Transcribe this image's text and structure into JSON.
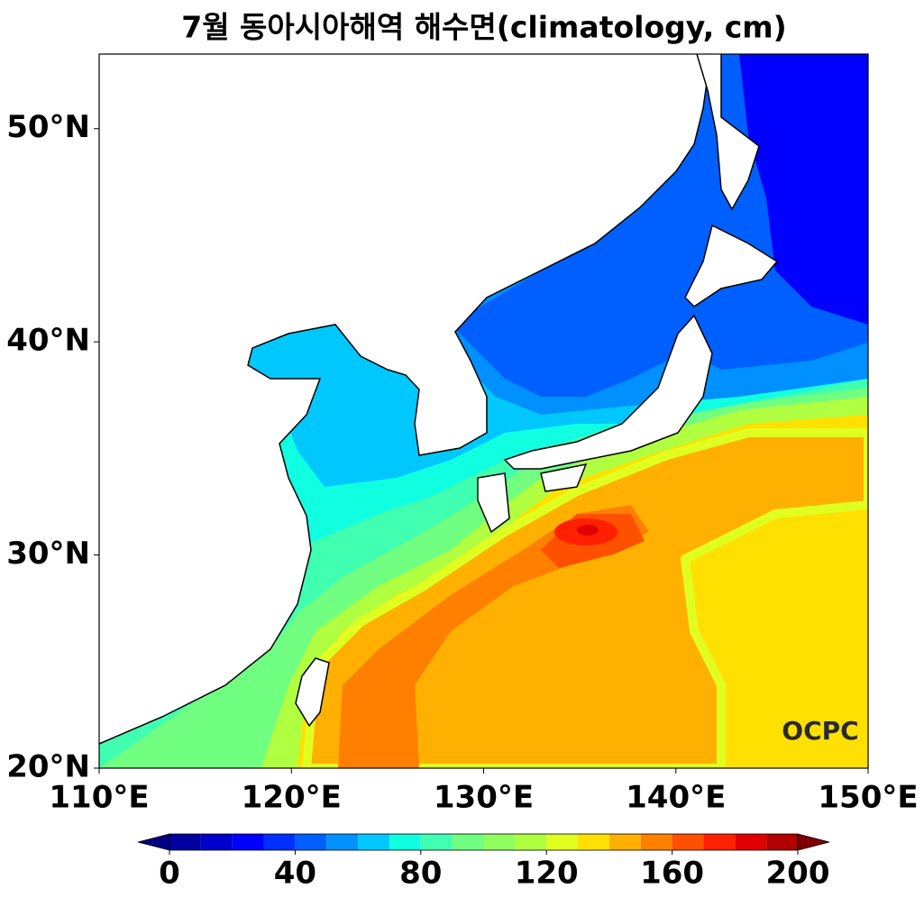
{
  "title": "7월 동아시아해역 해수면(climatology, cm)",
  "map": {
    "xlim": [
      110,
      150
    ],
    "ylim": [
      20,
      53.5
    ],
    "xticks": [
      {
        "value": 110,
        "label": "110°E"
      },
      {
        "value": 120,
        "label": "120°E"
      },
      {
        "value": 130,
        "label": "130°E"
      },
      {
        "value": 140,
        "label": "140°E"
      },
      {
        "value": 150,
        "label": "150°E"
      }
    ],
    "yticks": [
      {
        "value": 20,
        "label": "20°N"
      },
      {
        "value": 30,
        "label": "30°N"
      },
      {
        "value": 40,
        "label": "40°N"
      },
      {
        "value": 50,
        "label": "50°N"
      }
    ]
  },
  "colorbar": {
    "levels": [
      0,
      10,
      20,
      30,
      40,
      50,
      60,
      70,
      80,
      90,
      100,
      110,
      120,
      130,
      140,
      150,
      160,
      170,
      180,
      190,
      200
    ],
    "colors": [
      "#000080",
      "#0000a0",
      "#0000cd",
      "#0000ff",
      "#0030ff",
      "#0060ff",
      "#0090ff",
      "#00c8ff",
      "#10ffe0",
      "#40ffb0",
      "#70ff80",
      "#90ff60",
      "#b0ff40",
      "#e0ff20",
      "#ffe000",
      "#ffb000",
      "#ff8000",
      "#ff5000",
      "#ff2000",
      "#e00000",
      "#b00000",
      "#800000"
    ],
    "ticks": [
      0,
      40,
      80,
      120,
      160,
      200
    ],
    "extend": "both"
  },
  "logo": "OCPC"
}
